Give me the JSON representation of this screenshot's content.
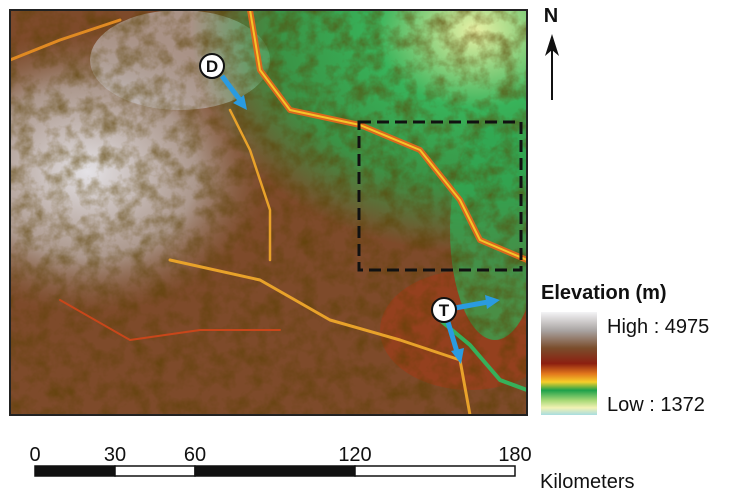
{
  "north_label": "N",
  "markers": [
    {
      "label": "D"
    },
    {
      "label": "T"
    }
  ],
  "legend": {
    "title": "Elevation (m)",
    "high": "High : 4975",
    "low": "Low : 1372"
  },
  "scale_bar": {
    "ticks": [
      0,
      30,
      60,
      120,
      180
    ],
    "unit": "Kilometers"
  }
}
